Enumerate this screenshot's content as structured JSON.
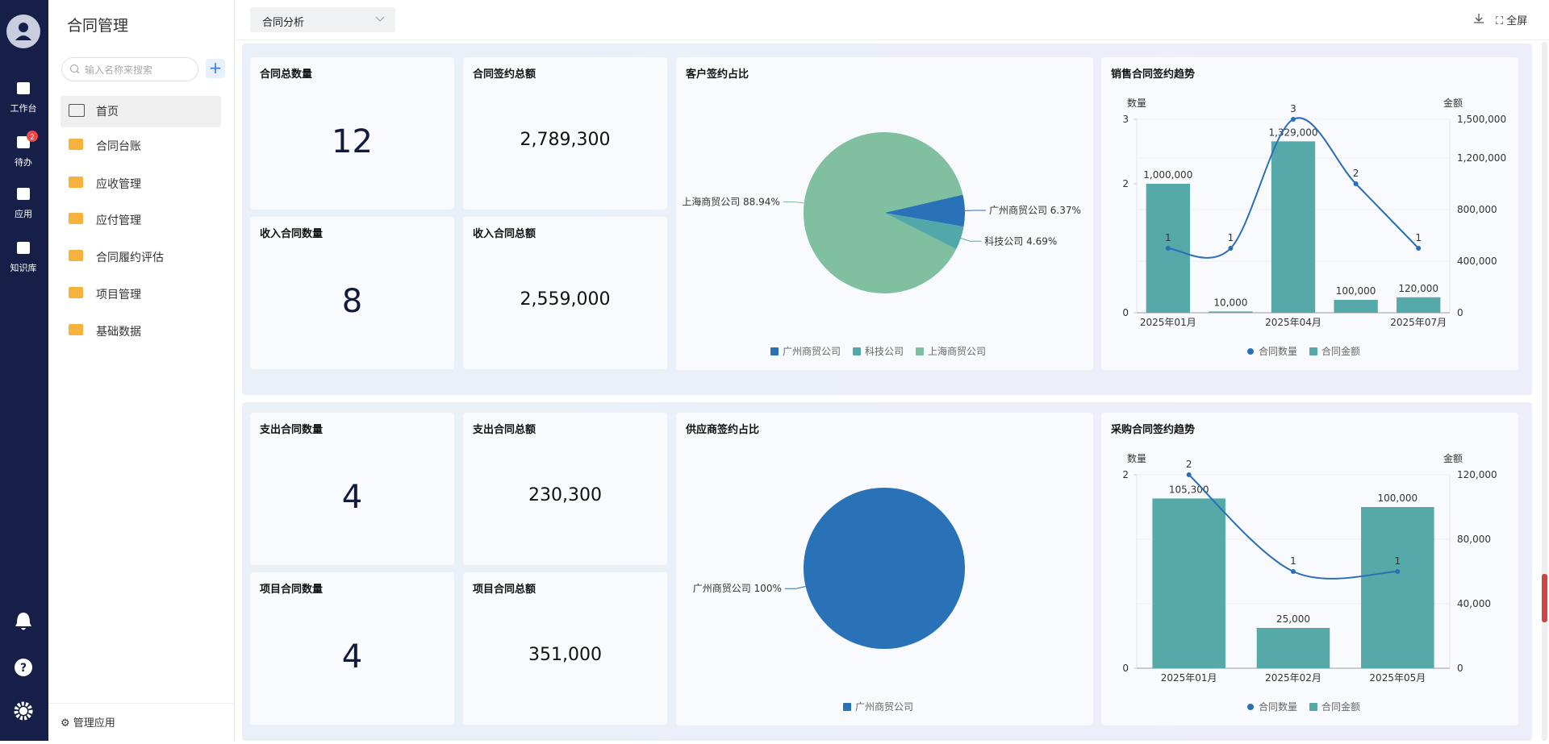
{
  "sidebar": {
    "items": [
      {
        "label": "工作台"
      },
      {
        "label": "待办",
        "badge": 2
      },
      {
        "label": "应用"
      },
      {
        "label": "知识库"
      }
    ]
  },
  "nav": {
    "title": "合同管理",
    "search_placeholder": "输入名称来搜索",
    "items": [
      "首页",
      "合同台账",
      "应收管理",
      "应付管理",
      "合同履约评估",
      "项目管理",
      "基础数据"
    ],
    "footer": "管理应用"
  },
  "toolbar": {
    "dropdown": "合同分析",
    "fullscreen": "全屏"
  },
  "cards": [
    {
      "title": "合同总数量",
      "value": "12"
    },
    {
      "title": "合同签约总额",
      "value": "2,789,300"
    },
    {
      "title": "收入合同数量",
      "value": "8"
    },
    {
      "title": "收入合同总额",
      "value": "2,559,000"
    },
    {
      "title": "支出合同数量",
      "value": "4"
    },
    {
      "title": "支出合同总额",
      "value": "230,300"
    },
    {
      "title": "项目合同数量",
      "value": "4"
    },
    {
      "title": "项目合同总额",
      "value": "351,000"
    }
  ],
  "chart_data": [
    {
      "type": "pie",
      "title": "客户签约占比",
      "categories": [
        "广州商贸公司",
        "科技公司",
        "上海商贸公司"
      ],
      "values": [
        6.37,
        4.69,
        88.94
      ],
      "value_labels": [
        "6.37%",
        "4.69%",
        "88.94%"
      ],
      "colors": [
        "#2a72b8",
        "#52a8a8",
        "#80bfa0"
      ]
    },
    {
      "type": "combo",
      "title": "销售合同签约趋势",
      "ylabel": "数量",
      "y2label": "金额",
      "categories": [
        "2025年01月",
        null,
        "2025年04月",
        null,
        "2025年07月"
      ],
      "series": [
        {
          "name": "合同数量",
          "type": "line",
          "color": "#2a6fb5",
          "values": [
            1,
            1,
            3,
            2,
            1
          ]
        },
        {
          "name": "合同金额",
          "type": "bar",
          "axis": "y2",
          "color": "#55a9a9",
          "values": [
            1000000,
            10000,
            1329000,
            100000,
            120000
          ],
          "value_labels": [
            "1,000,000",
            "10,000",
            "1,329,000",
            "100,000",
            "120,000"
          ]
        }
      ],
      "ylim": [
        0,
        3
      ],
      "yticks": [
        0,
        2,
        3
      ],
      "y2lim": [
        0,
        1500000
      ],
      "y2ticks": [
        0,
        {
          "value": 400000,
          "label": "400,000"
        },
        {
          "value": 800000,
          "label": "800,000"
        },
        {
          "value": 1200000,
          "label": "1,200,000"
        },
        {
          "value": 1500000,
          "label": "1,500,000"
        }
      ]
    },
    {
      "type": "pie",
      "title": "供应商签约占比",
      "categories": [
        "广州商贸公司"
      ],
      "values": [
        100
      ],
      "value_labels": [
        "100%"
      ],
      "colors": [
        "#2a72b8"
      ]
    },
    {
      "type": "combo",
      "title": "采购合同签约趋势",
      "ylabel": "数量",
      "y2label": "金额",
      "categories": [
        "2025年01月",
        "2025年02月",
        "2025年05月"
      ],
      "series": [
        {
          "name": "合同数量",
          "type": "line",
          "color": "#2a6fb5",
          "values": [
            2,
            1,
            1
          ]
        },
        {
          "name": "合同金额",
          "type": "bar",
          "axis": "y2",
          "color": "#55a9a9",
          "values": [
            105300,
            25000,
            100000
          ],
          "value_labels": [
            "105,300",
            "25,000",
            "100,000"
          ]
        }
      ],
      "ylim": [
        0,
        2
      ],
      "yticks": [
        0,
        2
      ],
      "y2lim": [
        0,
        120000
      ],
      "y2ticks": [
        0,
        {
          "value": 40000,
          "label": "40,000"
        },
        {
          "value": 80000,
          "label": "80,000"
        },
        {
          "value": 120000,
          "label": "120,000"
        }
      ]
    }
  ]
}
